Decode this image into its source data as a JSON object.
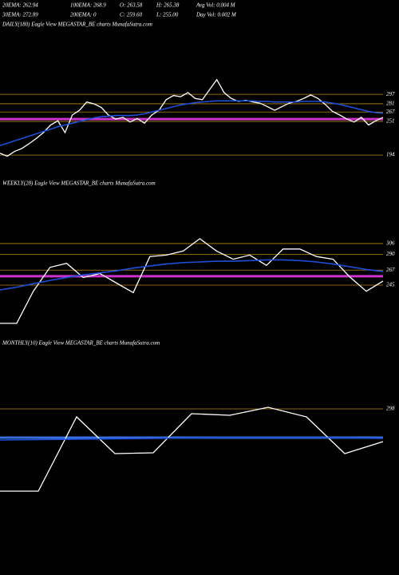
{
  "header": {
    "row1": [
      "20EMA: 262.94",
      "100EMA: 268.9",
      "O: 263.58",
      "H: 265.38",
      "Avg Vol: 0.004  M"
    ],
    "row2": [
      "30EMA: 272.89",
      "200EMA: 0",
      "C: 259.60",
      "L: 255.00",
      "Day Vol: 0.002  M"
    ]
  },
  "chart_data": [
    {
      "type": "line",
      "title": "DAILY(180) Eagle  View  MEGASTAR_BE charts MunafaSutra.com",
      "ylim": [
        186,
        403
      ],
      "yticks": [
        297,
        281,
        267,
        251,
        194
      ],
      "highlight": 255,
      "highlight_color": "#cc33cc",
      "level_color": "#b8860b",
      "series": [
        {
          "color": "#ffffff",
          "values": [
            197,
            192,
            200,
            205,
            213,
            222,
            232,
            245,
            252,
            232,
            262,
            270,
            284,
            281,
            275,
            262,
            255,
            258,
            250,
            256,
            248,
            262,
            270,
            288,
            295,
            293,
            300,
            290,
            288,
            305,
            322,
            300,
            290,
            285,
            287,
            284,
            282,
            276,
            270,
            276,
            282,
            285,
            290,
            296,
            290,
            280,
            268,
            262,
            255,
            250,
            258,
            245,
            252,
            258
          ]
        },
        {
          "color": "#1f4fd8",
          "values": [
            210,
            214,
            218,
            222,
            226,
            230,
            234,
            238,
            242,
            245,
            248,
            251,
            254,
            257,
            259,
            260,
            261,
            261,
            261,
            262,
            264,
            267,
            270,
            273,
            276,
            279,
            281,
            283,
            284,
            285,
            286,
            286,
            286,
            286,
            286,
            286,
            285,
            285,
            284,
            284,
            284,
            284,
            285,
            285,
            285,
            284,
            282,
            280,
            277,
            274,
            271,
            268,
            266,
            265
          ]
        }
      ]
    },
    {
      "type": "line",
      "title": "WEEKLY(28) Eagle  View  MEGASTAR_BE charts MunafaSutra.com",
      "ylim": [
        183,
        382
      ],
      "yticks": [
        306,
        290,
        267,
        245
      ],
      "highlight": 258,
      "highlight_color": "#cc33cc",
      "level_color": "#b8860b",
      "series": [
        {
          "color": "#ffffff",
          "values": [
            189,
            189,
            236,
            271,
            277,
            256,
            262,
            248,
            234,
            287,
            289,
            295,
            313,
            295,
            283,
            289,
            274,
            298,
            298,
            287,
            283,
            257,
            236,
            251
          ]
        },
        {
          "color": "#1f4fd8",
          "values": [
            238,
            242,
            247,
            252,
            256,
            260,
            263,
            266,
            270,
            273,
            276,
            278,
            279,
            280,
            280,
            281,
            282,
            282,
            281,
            279,
            276,
            272,
            268,
            265
          ]
        }
      ]
    },
    {
      "type": "line",
      "title": "MONTHLY(10) Eagle  View  MEGASTAR_BE charts MunafaSutra.com",
      "ylim": [
        82,
        442
      ],
      "yticks": [
        298
      ],
      "highlight": 226,
      "highlight_color": "#3a6fe0",
      "level_color": "#b8860b",
      "series": [
        {
          "color": "#ffffff",
          "values": [
            92,
            92,
            278,
            186,
            188,
            286,
            282,
            302,
            278,
            186,
            216
          ]
        },
        {
          "color": "#1f4fd8",
          "values": [
            220,
            221,
            222,
            223,
            224,
            225,
            226,
            226,
            226,
            225,
            224
          ]
        }
      ]
    }
  ]
}
